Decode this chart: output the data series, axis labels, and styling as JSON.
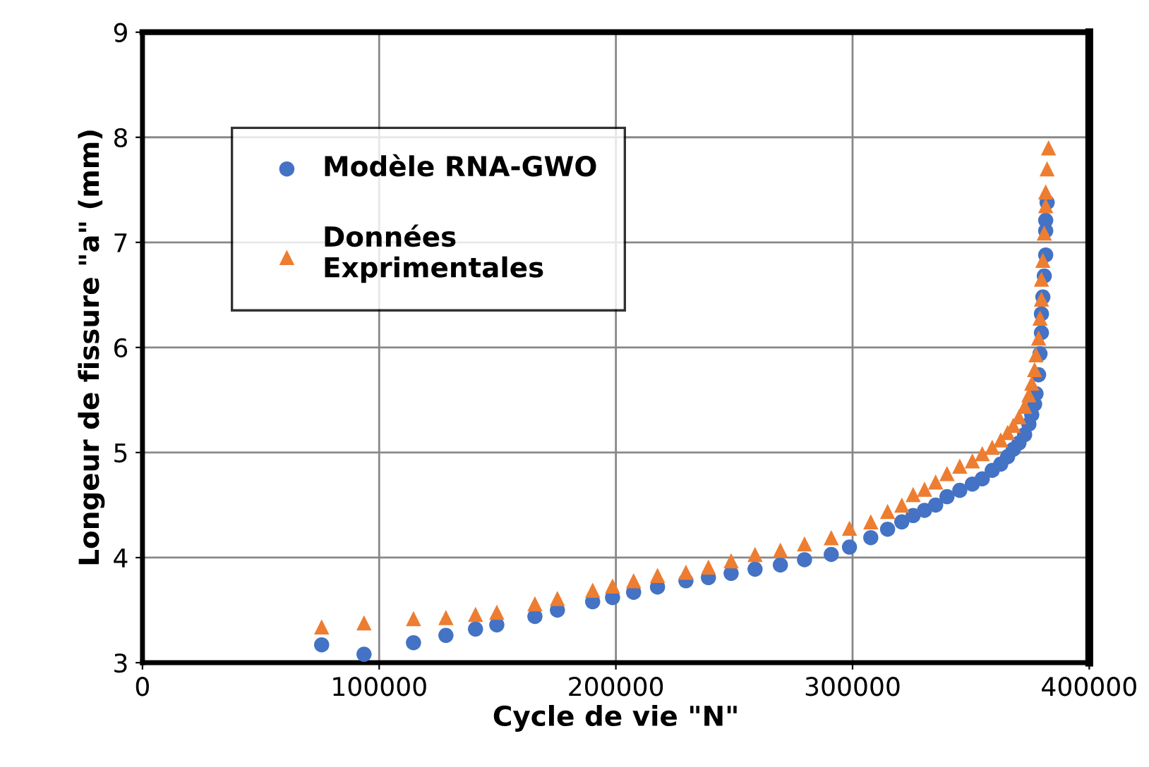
{
  "chart_data": {
    "type": "scatter",
    "xlabel": "Cycle de vie \"N\"",
    "ylabel": "Longeur de fissure \"a\" (mm)",
    "xlim": [
      0,
      400000
    ],
    "ylim": [
      3,
      9
    ],
    "xticks": [
      0,
      100000,
      200000,
      300000,
      400000
    ],
    "yticks": [
      3,
      4,
      5,
      6,
      7,
      8,
      9
    ],
    "grid": true,
    "legend": "top left",
    "series": [
      {
        "name": "Modèle RNA-GWO",
        "color": "#4472c4",
        "marker": "circle",
        "x": [
          75700,
          93600,
          114500,
          128200,
          140700,
          149700,
          165800,
          175300,
          190200,
          198600,
          207500,
          217600,
          229600,
          239100,
          248700,
          258800,
          269500,
          279700,
          291000,
          298700,
          307700,
          314800,
          320800,
          325600,
          330400,
          335100,
          339900,
          345300,
          350600,
          354800,
          359000,
          362600,
          365500,
          367900,
          370300,
          372700,
          374500,
          375700,
          376900,
          377500,
          378600,
          379200,
          379800,
          379800,
          380400,
          381000,
          381600,
          381600,
          381600,
          382200
        ],
        "values": [
          3.17,
          3.08,
          3.19,
          3.26,
          3.32,
          3.36,
          3.44,
          3.5,
          3.58,
          3.62,
          3.67,
          3.72,
          3.78,
          3.81,
          3.85,
          3.89,
          3.93,
          3.98,
          4.03,
          4.1,
          4.19,
          4.27,
          4.34,
          4.4,
          4.45,
          4.5,
          4.58,
          4.64,
          4.7,
          4.75,
          4.83,
          4.89,
          4.96,
          5.03,
          5.09,
          5.17,
          5.27,
          5.36,
          5.46,
          5.56,
          5.74,
          5.94,
          6.14,
          6.32,
          6.48,
          6.68,
          6.88,
          7.11,
          7.21,
          7.38
        ]
      },
      {
        "name": "Données\nExprimentales",
        "color": "#ed7d31",
        "marker": "triangle",
        "x": [
          75700,
          93600,
          114500,
          128200,
          140700,
          149700,
          165800,
          175300,
          190200,
          198600,
          207500,
          217600,
          229600,
          239100,
          248700,
          258800,
          269500,
          279700,
          291000,
          298700,
          307700,
          314800,
          320800,
          325600,
          330400,
          335100,
          339900,
          345300,
          350600,
          354800,
          359000,
          362600,
          365500,
          367900,
          370300,
          372700,
          374500,
          375700,
          376900,
          377500,
          378600,
          379200,
          379800,
          379800,
          380400,
          381000,
          381600,
          381600,
          382200,
          382800
        ],
        "values": [
          3.34,
          3.38,
          3.42,
          3.43,
          3.46,
          3.48,
          3.56,
          3.61,
          3.69,
          3.73,
          3.78,
          3.83,
          3.86,
          3.91,
          3.97,
          4.03,
          4.07,
          4.13,
          4.19,
          4.28,
          4.34,
          4.44,
          4.5,
          4.6,
          4.65,
          4.72,
          4.8,
          4.87,
          4.92,
          4.99,
          5.05,
          5.12,
          5.19,
          5.26,
          5.34,
          5.44,
          5.55,
          5.66,
          5.79,
          5.93,
          6.09,
          6.28,
          6.46,
          6.65,
          6.83,
          7.09,
          7.35,
          7.48,
          7.7,
          7.9
        ]
      }
    ]
  }
}
